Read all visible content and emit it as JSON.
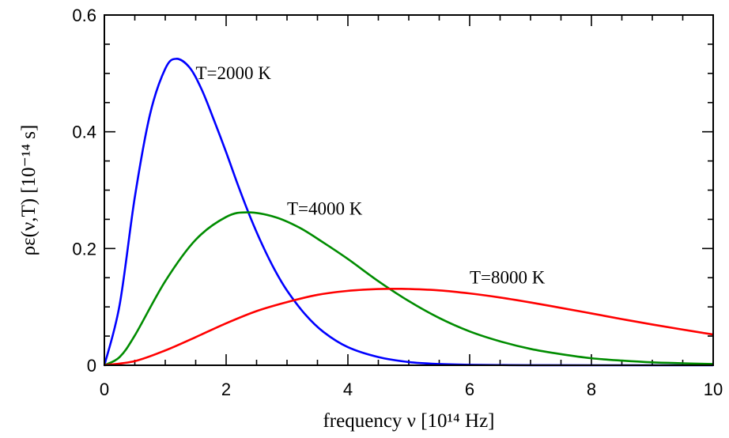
{
  "chart_data": {
    "type": "line",
    "xlabel": "frequency ν [10¹⁴ Hz]",
    "ylabel": "ρε(ν,T) [10⁻¹⁴ s]",
    "xlim": [
      0,
      10
    ],
    "ylim": [
      0,
      0.6
    ],
    "xticks": [
      0,
      2,
      4,
      6,
      8,
      10
    ],
    "yticks": [
      0,
      0.2,
      0.4,
      0.6
    ],
    "xtick_labels": [
      "0",
      "2",
      "4",
      "6",
      "8",
      "10"
    ],
    "ytick_labels": [
      "0",
      "0.2",
      "0.4",
      "0.6"
    ],
    "grid": false,
    "legend": "none",
    "series": [
      {
        "name": "T=2000 K",
        "color": "#0000ff",
        "label_at": [
          1.5,
          0.49
        ],
        "x": [
          0,
          0.25,
          0.5,
          0.75,
          1.0,
          1.18,
          1.4,
          1.6,
          1.8,
          2.0,
          2.2,
          2.4,
          2.6,
          2.8,
          3.0,
          3.3,
          3.6,
          4.0,
          4.5,
          5.0,
          5.5,
          6.0,
          7.0,
          8.0,
          10.0
        ],
        "y": [
          0,
          0.103,
          0.288,
          0.43,
          0.508,
          0.525,
          0.51,
          0.472,
          0.42,
          0.365,
          0.307,
          0.253,
          0.205,
          0.163,
          0.128,
          0.087,
          0.057,
          0.031,
          0.014,
          0.0055,
          0.0021,
          0.0008,
          0.0001,
          0.0,
          0.0
        ]
      },
      {
        "name": "T=4000 K",
        "color": "#008c00",
        "label_at": [
          3.0,
          0.258
        ],
        "x": [
          0,
          0.25,
          0.5,
          1.0,
          1.5,
          2.0,
          2.36,
          2.8,
          3.2,
          3.6,
          4.0,
          4.5,
          5.0,
          5.5,
          6.0,
          6.5,
          7.0,
          7.5,
          8.0,
          8.5,
          9.0,
          9.5,
          10.0
        ],
        "y": [
          0,
          0.014,
          0.051,
          0.144,
          0.215,
          0.254,
          0.262,
          0.254,
          0.236,
          0.21,
          0.182,
          0.144,
          0.11,
          0.081,
          0.058,
          0.041,
          0.028,
          0.019,
          0.012,
          0.008,
          0.005,
          0.0034,
          0.0021
        ]
      },
      {
        "name": "T=8000 K",
        "color": "#ff0000",
        "label_at": [
          6.0,
          0.14
        ],
        "x": [
          0,
          0.5,
          1.0,
          1.5,
          2.0,
          2.5,
          3.0,
          3.5,
          4.0,
          4.5,
          4.75,
          5.0,
          5.5,
          6.0,
          6.5,
          7.0,
          7.5,
          8.0,
          8.5,
          9.0,
          9.5,
          10.0
        ],
        "y": [
          0,
          0.0071,
          0.0254,
          0.0482,
          0.0719,
          0.0928,
          0.1082,
          0.1206,
          0.1275,
          0.1306,
          0.131,
          0.1307,
          0.1283,
          0.1231,
          0.1161,
          0.1076,
          0.0983,
          0.0888,
          0.0791,
          0.0698,
          0.0611,
          0.0527
        ]
      }
    ]
  }
}
